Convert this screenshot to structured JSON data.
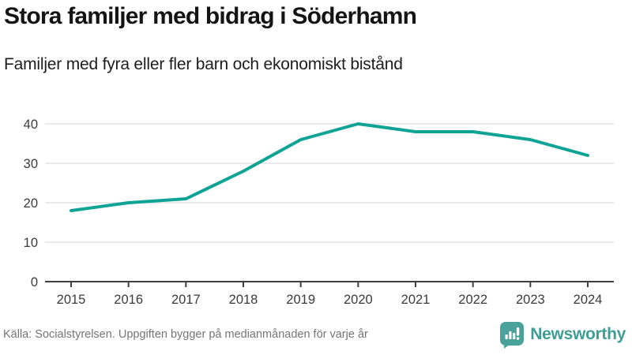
{
  "header": {
    "title": "Stora familjer med bidrag i Söderhamn",
    "subtitle": "Familjer med fyra eller fler barn och ekonomiskt bistånd"
  },
  "chart_data": {
    "type": "line",
    "x": [
      2015,
      2016,
      2017,
      2018,
      2019,
      2020,
      2021,
      2022,
      2023,
      2024
    ],
    "values": [
      18,
      20,
      21,
      28,
      36,
      40,
      38,
      38,
      36,
      32
    ],
    "series_name": "Familjer med fyra eller fler barn och ekonomiskt bistånd",
    "title": "Stora familjer med bidrag i Söderhamn",
    "xlabel": "",
    "ylabel": "",
    "ylim": [
      0,
      40
    ],
    "yticks": [
      0,
      10,
      20,
      30,
      40
    ],
    "grid": "horizontal",
    "legend": "none",
    "line_color": "#0fa396"
  },
  "footer": {
    "source": "Källa: Socialstyrelsen. Uppgiften bygger på medianmånaden för varje år",
    "logo_text": "Newsworthy"
  },
  "colors": {
    "line": "#0fa396",
    "grid": "#dcdcdc",
    "axis": "#3f3f3f",
    "tick_label": "#3a3a3a",
    "source_text": "#757575",
    "brand": "#3f9d94"
  }
}
